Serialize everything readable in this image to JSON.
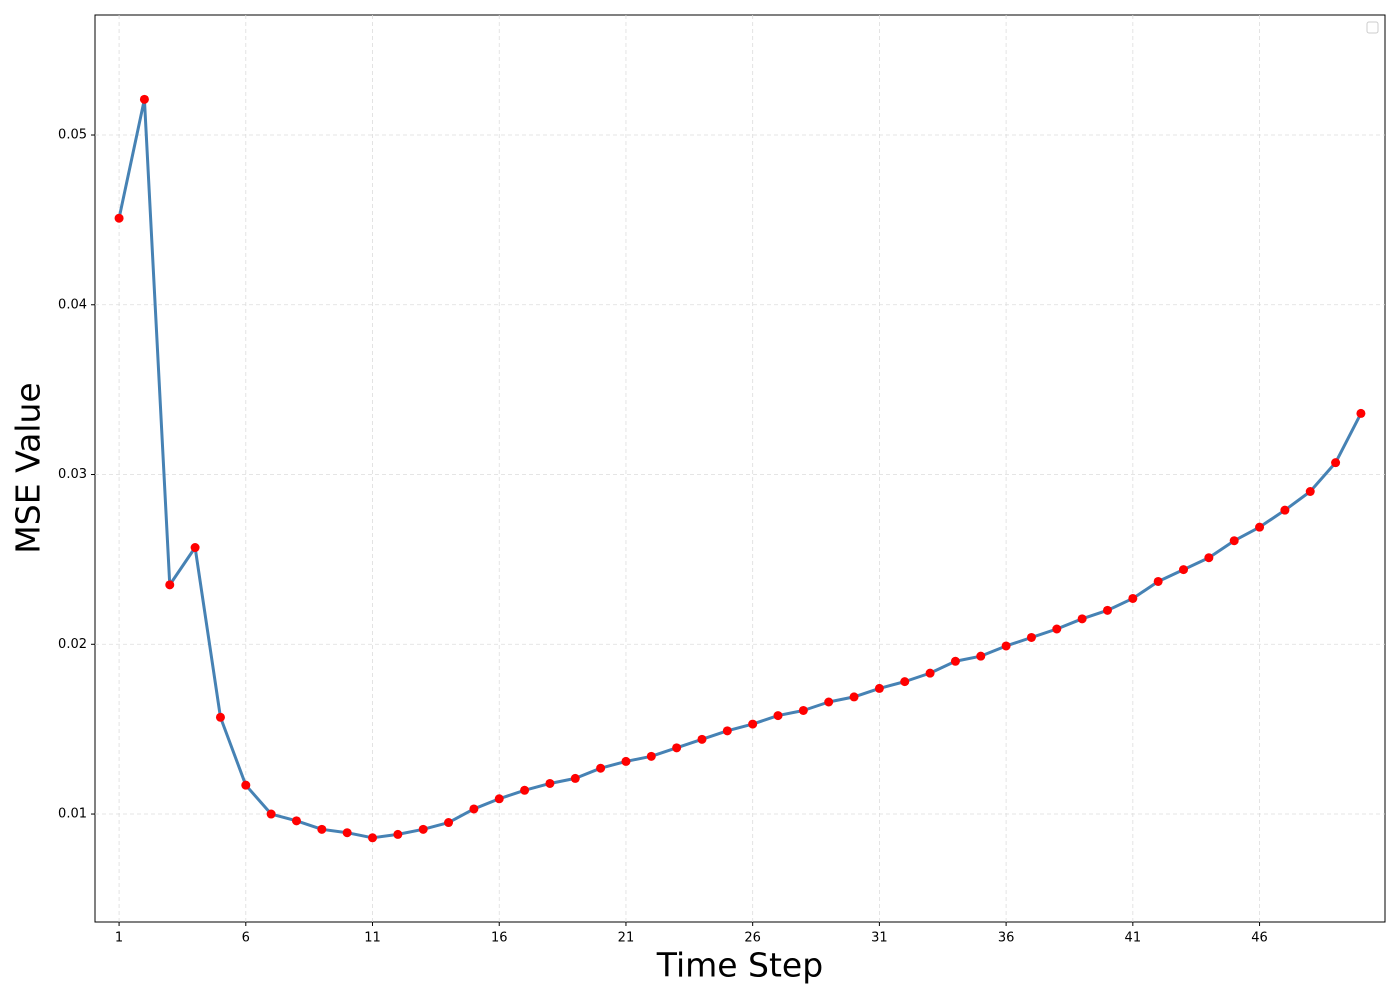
{
  "chart_data": {
    "type": "line",
    "xlabel": "Time Step",
    "ylabel": "MSE Value",
    "x": [
      1,
      2,
      3,
      4,
      5,
      6,
      7,
      8,
      9,
      10,
      11,
      12,
      13,
      14,
      15,
      16,
      17,
      18,
      19,
      20,
      21,
      22,
      23,
      24,
      25,
      26,
      27,
      28,
      29,
      30,
      31,
      32,
      33,
      34,
      35,
      36,
      37,
      38,
      39,
      40,
      41,
      42,
      43,
      44,
      45,
      46,
      47,
      48,
      49,
      50
    ],
    "values": [
      0.0451,
      0.0521,
      0.0235,
      0.0257,
      0.0157,
      0.0117,
      0.01,
      0.0096,
      0.0091,
      0.0089,
      0.0086,
      0.0088,
      0.0091,
      0.0095,
      0.0103,
      0.0109,
      0.0114,
      0.0118,
      0.0121,
      0.0127,
      0.0131,
      0.0134,
      0.0139,
      0.0144,
      0.0149,
      0.0153,
      0.0158,
      0.0161,
      0.0166,
      0.0169,
      0.0174,
      0.0178,
      0.0183,
      0.019,
      0.0193,
      0.0199,
      0.0204,
      0.0209,
      0.0215,
      0.022,
      0.0227,
      0.0237,
      0.0244,
      0.0251,
      0.0261,
      0.0269,
      0.0279,
      0.029,
      0.0307,
      0.0336
    ],
    "color": "#4682b4",
    "marker_color": "#ff0000",
    "xlim": [
      0.05,
      50.95
    ],
    "xticks": [
      1,
      6,
      11,
      16,
      21,
      26,
      31,
      36,
      41,
      46
    ],
    "ylim": [
      0.00364,
      0.05707
    ],
    "yticks": [
      0.01,
      0.02,
      0.03,
      0.04,
      0.05
    ],
    "grid": true
  }
}
